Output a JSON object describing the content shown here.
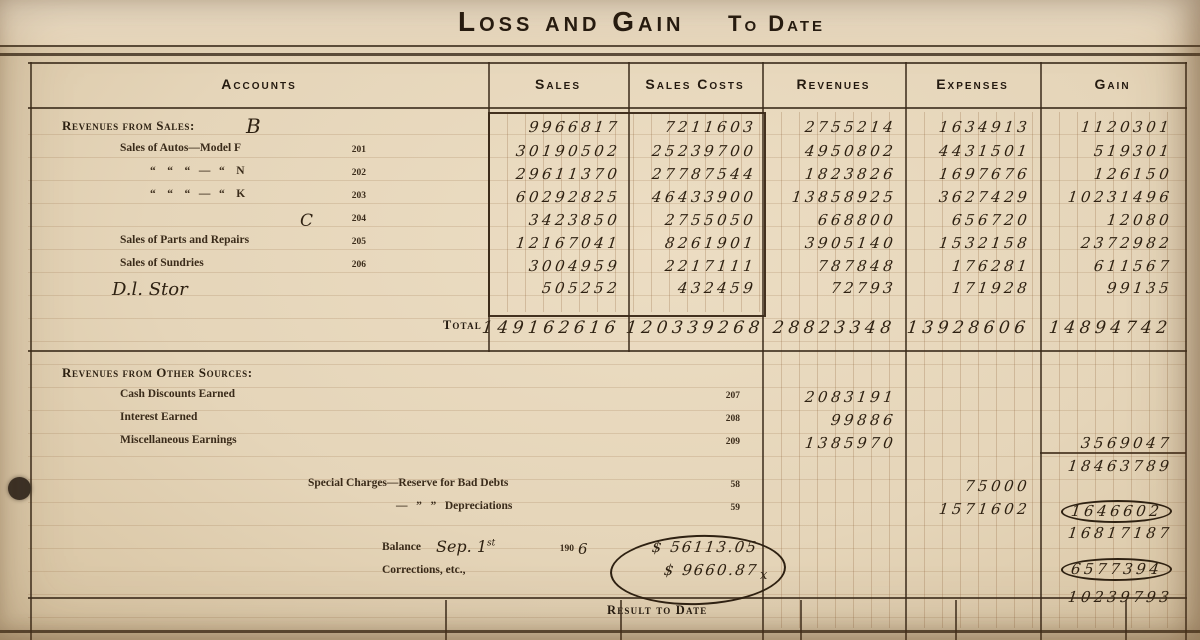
{
  "title": {
    "main": "Loss and Gain",
    "sub": "To Date"
  },
  "columns": {
    "accounts": "Accounts",
    "sales": "Sales",
    "sales_costs": "Sales Costs",
    "revenues": "Revenues",
    "expenses": "Expenses",
    "gain": "Gain"
  },
  "rows": [
    {
      "kind": "section",
      "label": "Revenues from Sales:",
      "note": "B",
      "sales": "9966817",
      "costs": "7211603",
      "revenues": "2755214",
      "expenses": "1634913",
      "gain": "1120301"
    },
    {
      "kind": "item",
      "label": "Sales of Autos—Model F",
      "no": "201",
      "sales": "30190502",
      "costs": "25239700",
      "revenues": "4950802",
      "expenses": "4431501",
      "gain": "519301"
    },
    {
      "kind": "item",
      "label": "“    “    “   —   “    N",
      "no": "202",
      "sales": "29611370",
      "costs": "27787544",
      "revenues": "1823826",
      "expenses": "1697676",
      "gain": "126150"
    },
    {
      "kind": "item",
      "label": "“    “    “   —   “    K",
      "no": "203",
      "sales": "60292825",
      "costs": "46433900",
      "revenues": "13858925",
      "expenses": "3627429",
      "gain": "10231496"
    },
    {
      "kind": "item-hw",
      "label": "C",
      "no": "204",
      "sales": "3423850",
      "costs": "2755050",
      "revenues": "668800",
      "expenses": "656720",
      "gain": "12080"
    },
    {
      "kind": "item",
      "label": "Sales of Parts and Repairs",
      "no": "205",
      "sales": "12167041",
      "costs": "8261901",
      "revenues": "3905140",
      "expenses": "1532158",
      "gain": "2372982"
    },
    {
      "kind": "item",
      "label": "Sales of Sundries",
      "no": "206",
      "sales": "3004959",
      "costs": "2217111",
      "revenues": "787848",
      "expenses": "176281",
      "gain": "611567"
    },
    {
      "kind": "hw-note",
      "label": "D.l. Stor",
      "sales": "505252",
      "costs": "432459",
      "revenues": "72793",
      "expenses": "171928",
      "gain": "99135"
    },
    {
      "kind": "total",
      "label": "Total",
      "sales": "149162616",
      "costs": "120339268",
      "revenues": "28823348",
      "expenses": "13928606",
      "gain": "14894742"
    },
    {
      "kind": "section",
      "label": "Revenues from Other Sources:"
    },
    {
      "kind": "item",
      "label": "Cash Discounts Earned",
      "no": "207",
      "revenues": "2083191"
    },
    {
      "kind": "item",
      "label": "Interest Earned",
      "no": "208",
      "revenues": "99886"
    },
    {
      "kind": "item",
      "label": "Miscellaneous Earnings",
      "no": "209",
      "revenues": "1385970",
      "gain": "3569047"
    },
    {
      "kind": "gain-only",
      "gain": "18463789"
    },
    {
      "kind": "item",
      "label": "Special Charges—Reserve for Bad Debts",
      "no": "58",
      "expenses": "75000"
    },
    {
      "kind": "item",
      "label": "—   ”   ”   Depreciations",
      "no": "59",
      "expenses": "1571602",
      "gain": "1646602",
      "gain_circled": true
    },
    {
      "kind": "gain-only",
      "gain": "16817187"
    },
    {
      "kind": "balance",
      "label": "Balance",
      "date_hw": "Sep. 1",
      "date_sup": "st",
      "year_printed": "190",
      "year_hw": "6",
      "amount": "$  56113.05"
    },
    {
      "kind": "corrections",
      "label": "Corrections, etc.,",
      "amount": "$  9660.87",
      "mark": "x"
    },
    {
      "kind": "gain-only",
      "gain": "6577394",
      "gain_circled": true
    },
    {
      "kind": "result",
      "label": "Result to Date",
      "gain": "10239793"
    }
  ]
}
